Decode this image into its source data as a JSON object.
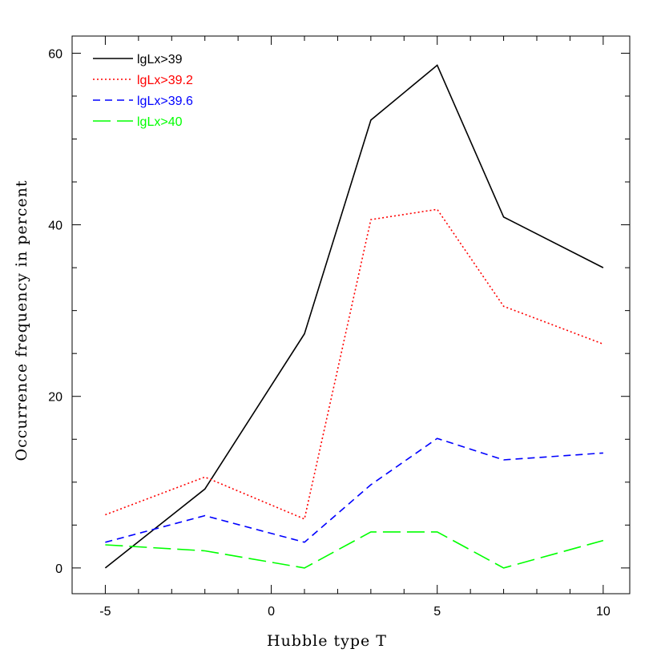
{
  "chart_data": {
    "type": "line",
    "title": "",
    "xlabel": "Hubble type T",
    "ylabel": "Occurrence frequency in percent",
    "xlim": [
      -6.0,
      10.8
    ],
    "ylim": [
      -3.0,
      62.0
    ],
    "x_ticks": [
      -5,
      0,
      5,
      10
    ],
    "x_tick_labels": [
      "-5",
      "0",
      "5",
      "10"
    ],
    "y_ticks": [
      0,
      20,
      40,
      60
    ],
    "y_tick_labels": [
      "0",
      "20",
      "40",
      "60"
    ],
    "x_minor_step": 1,
    "y_minor_step": 5,
    "grid": false,
    "legend_position": "top-left",
    "x": [
      -5,
      -2,
      1,
      3,
      5,
      7,
      10
    ],
    "series": [
      {
        "name": "lgLx>39",
        "color": "#000000",
        "dash": "solid",
        "values": [
          0.0,
          9.2,
          27.3,
          52.2,
          58.6,
          40.9,
          35.0
        ]
      },
      {
        "name": "lgLx>39.2",
        "color": "#ff0000",
        "dash": "dotted",
        "values": [
          6.2,
          10.6,
          5.7,
          40.6,
          41.8,
          30.5,
          26.1
        ]
      },
      {
        "name": "lgLx>39.6",
        "color": "#0000ff",
        "dash": "dashed",
        "values": [
          3.0,
          6.1,
          3.0,
          9.7,
          15.1,
          12.6,
          13.4
        ]
      },
      {
        "name": "lgLx>40",
        "color": "#00ff00",
        "dash": "longdash",
        "values": [
          2.7,
          2.0,
          0.0,
          4.2,
          4.2,
          0.0,
          3.2
        ]
      }
    ]
  }
}
